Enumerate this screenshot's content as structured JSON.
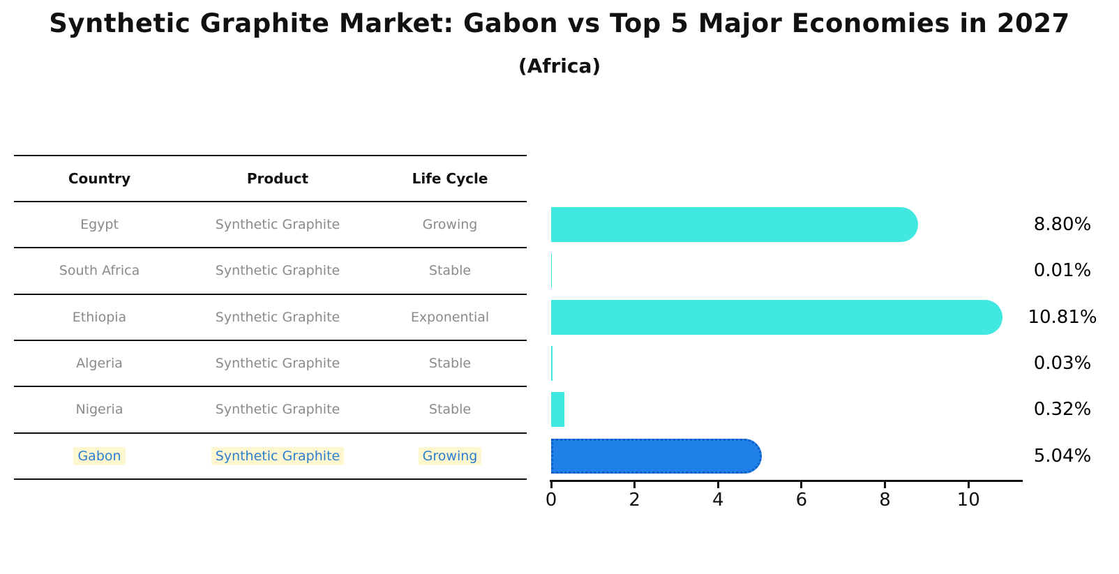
{
  "title": "Synthetic Graphite Market: Gabon vs Top 5 Major Economies in 2027",
  "subtitle": "(Africa)",
  "table": {
    "headers": [
      "Country",
      "Product",
      "Life Cycle"
    ],
    "rows": [
      {
        "country": "Egypt",
        "product": "Synthetic Graphite",
        "life_cycle": "Growing",
        "value": 8.8,
        "value_label": "8.80%",
        "highlight": false
      },
      {
        "country": "South Africa",
        "product": "Synthetic Graphite",
        "life_cycle": "Stable",
        "value": 0.01,
        "value_label": "0.01%",
        "highlight": false
      },
      {
        "country": "Ethiopia",
        "product": "Synthetic Graphite",
        "life_cycle": "Exponential",
        "value": 10.81,
        "value_label": "10.81%",
        "highlight": false
      },
      {
        "country": "Algeria",
        "product": "Synthetic Graphite",
        "life_cycle": "Stable",
        "value": 0.03,
        "value_label": "0.03%",
        "highlight": false
      },
      {
        "country": "Nigeria",
        "product": "Synthetic Graphite",
        "life_cycle": "Stable",
        "value": 0.32,
        "value_label": "0.32%",
        "highlight": false
      },
      {
        "country": "Gabon",
        "product": "Synthetic Graphite",
        "life_cycle": "Growing",
        "value": 5.04,
        "value_label": "5.04%",
        "highlight": true
      }
    ]
  },
  "chart_data": {
    "type": "bar",
    "orientation": "horizontal",
    "title": "Synthetic Graphite Market: Gabon vs Top 5 Major Economies in 2027",
    "subtitle": "(Africa)",
    "categories": [
      "Egypt",
      "South Africa",
      "Ethiopia",
      "Algeria",
      "Nigeria",
      "Gabon"
    ],
    "values": [
      8.8,
      0.01,
      10.81,
      0.03,
      0.32,
      5.04
    ],
    "value_labels": [
      "8.80%",
      "0.01%",
      "10.81%",
      "0.03%",
      "0.32%",
      "5.04%"
    ],
    "unit": "%",
    "xlabel": "",
    "ylabel": "",
    "xticks": [
      0,
      2,
      4,
      6,
      8,
      10
    ],
    "xlim": [
      0,
      11.3
    ],
    "grid": false,
    "legend": false,
    "highlight_index": 5
  },
  "colors": {
    "bar": "#40E8E0",
    "highlight_bar": "#1E80E8",
    "highlight_bar_border": "#0d5ec4",
    "highlight_text": "#2c7fd0",
    "highlight_text_bg": "#fdf6cf",
    "header_text": "#111111",
    "cell_text": "#8a8a8a",
    "value_text": "#000000",
    "line": "#111111"
  }
}
